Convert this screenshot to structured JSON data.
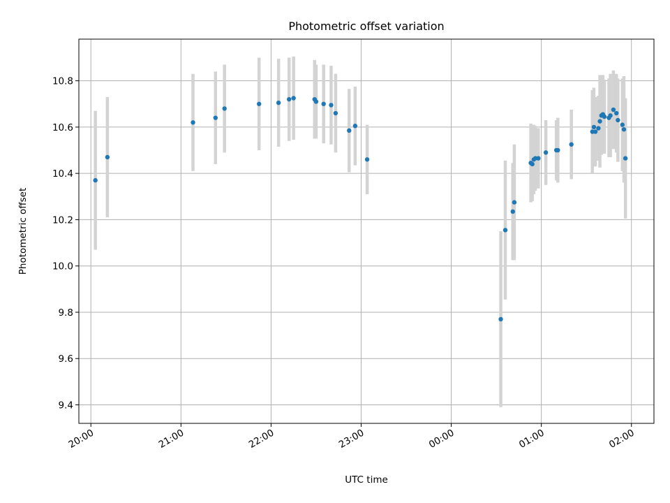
{
  "chart_data": {
    "type": "scatter",
    "title": "Photometric offset variation",
    "xlabel": "UTC time",
    "ylabel": "Photometric offset",
    "grid": true,
    "legend": "none",
    "xlim": [
      "19:52",
      "02:15"
    ],
    "ylim": [
      9.32,
      10.98
    ],
    "x_ticks": [
      "20:00",
      "21:00",
      "22:00",
      "23:00",
      "00:00",
      "01:00",
      "02:00"
    ],
    "y_ticks": [
      9.4,
      9.6,
      9.8,
      10.0,
      10.2,
      10.4,
      10.6,
      10.8
    ],
    "colors": {
      "marker": "#1f77b4",
      "errorbar": "#d3d3d3"
    },
    "series": [
      {
        "x": [
          "20:03",
          "20:11",
          "21:08",
          "21:23",
          "21:29",
          "21:52",
          "22:05",
          "22:12",
          "22:15",
          "22:29",
          "22:30",
          "22:35",
          "22:40",
          "22:43",
          "22:52",
          "22:56",
          "23:04",
          "00:33",
          "00:36",
          "00:41",
          "00:42",
          "00:53",
          "00:54",
          "00:55",
          "00:56",
          "00:58",
          "01:03",
          "01:10",
          "01:11",
          "01:20",
          "01:34",
          "01:35",
          "01:36",
          "01:38",
          "01:39",
          "01:40",
          "01:41",
          "01:42",
          "01:45",
          "01:46",
          "01:48",
          "01:50",
          "01:51",
          "01:54",
          "01:55",
          "01:56"
        ],
        "y": [
          10.37,
          10.47,
          10.62,
          10.64,
          10.68,
          10.7,
          10.705,
          10.72,
          10.725,
          10.72,
          10.71,
          10.7,
          10.695,
          10.66,
          10.585,
          10.605,
          10.46,
          9.77,
          10.155,
          10.235,
          10.275,
          10.445,
          10.44,
          10.46,
          10.465,
          10.465,
          10.49,
          10.5,
          10.5,
          10.525,
          10.58,
          10.6,
          10.58,
          10.595,
          10.625,
          10.65,
          10.655,
          10.645,
          10.64,
          10.65,
          10.675,
          10.66,
          10.63,
          10.61,
          10.59,
          10.465
        ],
        "yerr": [
          0.3,
          0.26,
          0.21,
          0.2,
          0.19,
          0.2,
          0.19,
          0.18,
          0.18,
          0.17,
          0.16,
          0.17,
          0.17,
          0.17,
          0.18,
          0.17,
          0.15,
          0.38,
          0.3,
          0.21,
          0.25,
          0.17,
          0.16,
          0.15,
          0.14,
          0.13,
          0.14,
          0.13,
          0.14,
          0.15,
          0.18,
          0.17,
          0.15,
          0.14,
          0.2,
          0.17,
          0.17,
          0.16,
          0.17,
          0.18,
          0.17,
          0.17,
          0.18,
          0.2,
          0.23,
          0.26
        ]
      }
    ]
  }
}
